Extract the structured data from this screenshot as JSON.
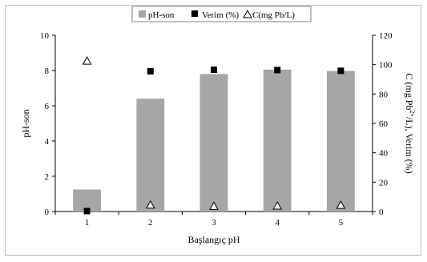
{
  "chart_data": {
    "type": "bar",
    "x": [
      1,
      2,
      3,
      4,
      5
    ],
    "categories": [
      "1",
      "2",
      "3",
      "4",
      "5"
    ],
    "xlabel": "Başlangıç pH",
    "ylabel_left": "pH-son",
    "ylabel_right_parts": [
      "C (mg Pb",
      "2+",
      "/L), Verim (%)"
    ],
    "ylim_left": [
      0,
      10
    ],
    "yticks_left": [
      "0",
      "2",
      "4",
      "6",
      "8",
      "10"
    ],
    "ylim_right": [
      0,
      120
    ],
    "yticks_right": [
      "0",
      "20",
      "40",
      "60",
      "80",
      "100",
      "120"
    ],
    "grid": false,
    "legend_position": "top-center",
    "series": [
      {
        "name": "pH-son",
        "kind": "bar",
        "axis": "left",
        "color": "#a6a6a6",
        "values": [
          1.25,
          6.4,
          7.8,
          8.05,
          7.97
        ]
      },
      {
        "name": "Verim (%)",
        "kind": "marker-square",
        "axis": "right",
        "color": "#000000",
        "values": [
          0.3,
          95.5,
          96.5,
          96.3,
          95.8
        ]
      },
      {
        "name": "C(mg Pb/L)",
        "kind": "marker-triangle-open",
        "axis": "right",
        "color": "#000000",
        "values": [
          102.5,
          4.5,
          3.6,
          3.8,
          4.3
        ]
      }
    ]
  }
}
